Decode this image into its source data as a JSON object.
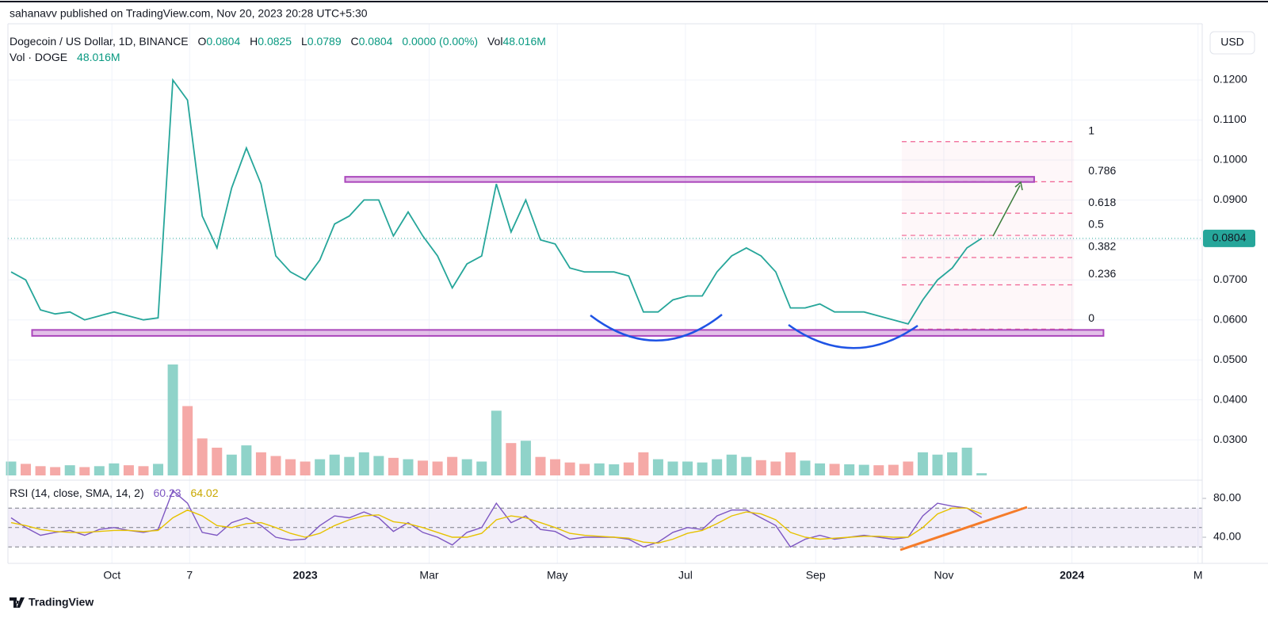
{
  "header": {
    "publisher": "sahanavv published on TradingView.com, Nov 20, 2023 20:28 UTC+5:30",
    "currency": "USD",
    "footer": "TradingView"
  },
  "legend": {
    "open_label": "O",
    "open": "0.0804",
    "high_label": "H",
    "high": "0.0825",
    "low_label": "L",
    "low": "0.0789",
    "close_label": "C",
    "close": "0.0804",
    "change": "0.0000 (0.00%)",
    "volume_label": "Vol",
    "volume": "48.016M"
  },
  "chart_data": {
    "type": "line",
    "x": [
      -48,
      -41,
      -34,
      -27,
      -20,
      -13,
      -6,
      1,
      8,
      15,
      22,
      29,
      36,
      43,
      50,
      57,
      64,
      71,
      78,
      85,
      92,
      99,
      106,
      113,
      120,
      127,
      134,
      141,
      148,
      155,
      162,
      169,
      176,
      183,
      190,
      197,
      204,
      211,
      218,
      225,
      232,
      239,
      246,
      253,
      260,
      267,
      274,
      281,
      288,
      295,
      302,
      309,
      316,
      323,
      330,
      337,
      344,
      351,
      358,
      365,
      372,
      379,
      386,
      393,
      400,
      407,
      414
    ],
    "xlim": [
      -49.5,
      519
    ],
    "xticks": [
      {
        "value": 0,
        "label": "Oct"
      },
      {
        "value": 37,
        "label": "7"
      },
      {
        "value": 92,
        "label": "2023"
      },
      {
        "value": 151,
        "label": "Mar"
      },
      {
        "value": 212,
        "label": "May"
      },
      {
        "value": 273,
        "label": "Jul"
      },
      {
        "value": 335,
        "label": "Sep"
      },
      {
        "value": 396,
        "label": "Nov"
      },
      {
        "value": 457,
        "label": "2024"
      },
      {
        "value": 517,
        "label": "M"
      }
    ],
    "ylim": [
      0.0211,
      0.1321
    ],
    "yticks": [
      {
        "value": 0.03,
        "label": "0.0300"
      },
      {
        "value": 0.04,
        "label": "0.0400"
      },
      {
        "value": 0.05,
        "label": "0.0500"
      },
      {
        "value": 0.06,
        "label": "0.0600"
      },
      {
        "value": 0.07,
        "label": "0.0700"
      },
      {
        "value": 0.08,
        "label": "0.0800"
      },
      {
        "value": 0.09,
        "label": "0.0900"
      },
      {
        "value": 0.1,
        "label": "0.1000"
      },
      {
        "value": 0.11,
        "label": "0.1100"
      },
      {
        "value": 0.12,
        "label": "0.1200"
      }
    ],
    "grid": true,
    "series": [
      {
        "name": "Dogecoin / US Dollar, 1D, BINANCE",
        "color": "#26a69a",
        "values": [
          0.072,
          0.07,
          0.0625,
          0.0615,
          0.062,
          0.06,
          0.061,
          0.062,
          0.061,
          0.06,
          0.0605,
          0.12,
          0.115,
          0.086,
          0.078,
          0.093,
          0.103,
          0.094,
          0.076,
          0.072,
          0.07,
          0.075,
          0.084,
          0.086,
          0.09,
          0.09,
          0.081,
          0.087,
          0.081,
          0.076,
          0.068,
          0.074,
          0.076,
          0.094,
          0.082,
          0.09,
          0.08,
          0.079,
          0.073,
          0.072,
          0.072,
          0.072,
          0.071,
          0.062,
          0.062,
          0.065,
          0.066,
          0.066,
          0.072,
          0.076,
          0.078,
          0.076,
          0.072,
          0.063,
          0.063,
          0.064,
          0.062,
          0.062,
          0.062,
          0.061,
          0.06,
          0.059,
          0.065,
          0.07,
          0.073,
          0.078,
          0.0804
        ]
      }
    ],
    "volume": {
      "name": "Vol · DOGE",
      "last_label": "48.016M",
      "up_color": "#8fd3c9",
      "down_color": "#f5a9a7",
      "values": [
        300,
        250,
        200,
        180,
        220,
        180,
        200,
        260,
        220,
        200,
        250,
        2400,
        1500,
        800,
        600,
        450,
        650,
        500,
        420,
        350,
        300,
        350,
        450,
        400,
        500,
        420,
        380,
        350,
        320,
        300,
        400,
        350,
        300,
        1400,
        700,
        750,
        400,
        350,
        280,
        250,
        260,
        240,
        280,
        500,
        350,
        300,
        300,
        280,
        350,
        450,
        400,
        330,
        300,
        500,
        320,
        260,
        250,
        240,
        230,
        220,
        230,
        300,
        500,
        450,
        500,
        600,
        48.016
      ]
    },
    "fib": {
      "levels": [
        0,
        0.236,
        0.382,
        0.5,
        0.618,
        0.786,
        1
      ],
      "price_range": [
        0.0577,
        0.1046
      ],
      "x_range": [
        376,
        458
      ],
      "color": "#f06292"
    },
    "zones": [
      {
        "range": [
          0.0945,
          0.0958
        ],
        "x_range": [
          111,
          439
        ]
      },
      {
        "range": [
          0.056,
          0.0575
        ],
        "x_range": [
          -38,
          472
        ]
      }
    ],
    "zone_color": "#ab47bc",
    "rsi": {
      "title": "RSI (14, close, SMA, 14, 2)",
      "ylim": [
        13.1,
        96.3
      ],
      "yticks": [
        {
          "value": 40,
          "label": "40.00"
        },
        {
          "value": 80,
          "label": "80.00"
        }
      ],
      "bands": [
        30,
        50,
        70
      ],
      "series": [
        {
          "color": "#7e57c2",
          "values": [
            60,
            50,
            42,
            45,
            47,
            42,
            48,
            50,
            47,
            45,
            48,
            88,
            75,
            45,
            42,
            55,
            60,
            52,
            40,
            37,
            38,
            52,
            62,
            60,
            66,
            60,
            46,
            55,
            45,
            40,
            32,
            45,
            50,
            75,
            55,
            62,
            48,
            46,
            38,
            40,
            40,
            40,
            38,
            30,
            35,
            45,
            50,
            48,
            62,
            68,
            68,
            60,
            52,
            30,
            38,
            42,
            38,
            40,
            42,
            40,
            38,
            40,
            62,
            75,
            72,
            70,
            60.23
          ]
        },
        {
          "color": "#e6c200",
          "values": [
            55,
            52,
            48,
            46,
            45,
            45,
            46,
            47,
            47,
            46,
            47,
            60,
            68,
            62,
            52,
            50,
            54,
            55,
            50,
            44,
            40,
            44,
            52,
            58,
            62,
            63,
            56,
            54,
            50,
            45,
            40,
            40,
            44,
            58,
            62,
            60,
            55,
            50,
            44,
            42,
            41,
            40,
            39,
            35,
            34,
            38,
            44,
            47,
            54,
            62,
            66,
            64,
            58,
            45,
            40,
            38,
            39,
            40,
            41,
            41,
            40,
            40,
            50,
            64,
            70,
            70,
            64.02
          ]
        }
      ]
    }
  }
}
